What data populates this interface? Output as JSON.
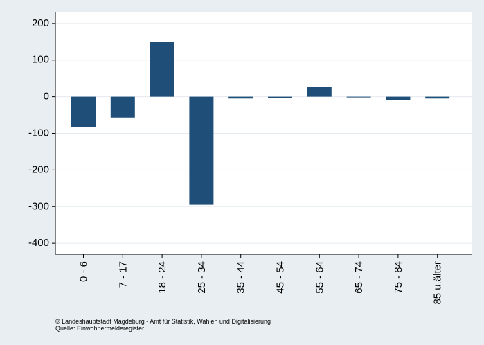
{
  "chart_data": {
    "type": "bar",
    "categories": [
      "0 - 6",
      "7 - 17",
      "18 - 24",
      "25 - 34",
      "35 - 44",
      "45 - 54",
      "55 - 64",
      "65 - 74",
      "75 - 84",
      "85 u.älter"
    ],
    "values": [
      -82,
      -57,
      150,
      -295,
      -5,
      -3,
      27,
      -1,
      -9,
      -5
    ],
    "ylim": [
      -430,
      230
    ],
    "yticks": [
      -400,
      -300,
      -200,
      -100,
      0,
      100,
      200
    ],
    "ytick_labels": [
      "-400",
      "-300",
      "-200",
      "-100",
      "0",
      "100",
      "200"
    ],
    "grid": true,
    "colors": {
      "bar": "#1f4e79",
      "background": "#e8eef2",
      "plot_background": "#ffffff",
      "grid": "#e4eaee"
    }
  },
  "footer": {
    "copyright_line": "© Landeshauptstadt Magdeburg - Amt für Statistik, Wahlen und Digitalisierung",
    "source_line": "Quelle: Einwohnermelderegister"
  }
}
